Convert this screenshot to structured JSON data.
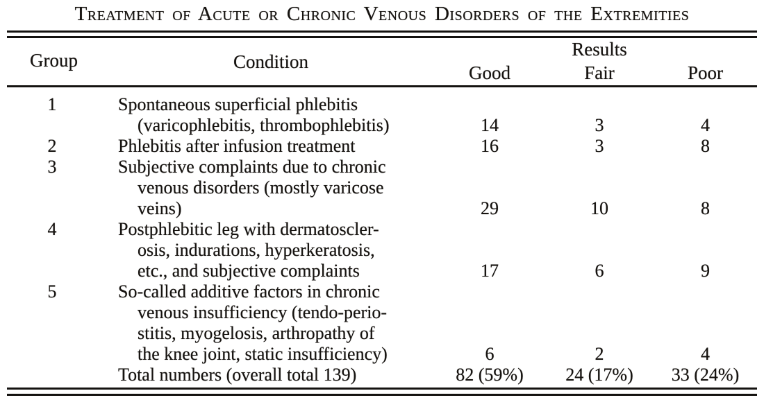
{
  "title": "Treatment of Acute or Chronic Venous Disorders of the Extremities",
  "colors": {
    "ink": "#161310",
    "paper": "#ffffff"
  },
  "table": {
    "headers": {
      "group": "Group",
      "condition": "Condition",
      "results": "Results",
      "good": "Good",
      "fair": "Fair",
      "poor": "Poor"
    },
    "rows": [
      {
        "group": "1",
        "lines": [
          {
            "text": "Spontaneous superficial phlebitis",
            "indent": false,
            "good": "",
            "fair": "",
            "poor": ""
          },
          {
            "text": "(varicophlebitis, thrombophlebitis)",
            "indent": true,
            "good": "14",
            "fair": "3",
            "poor": "4"
          }
        ]
      },
      {
        "group": "2",
        "lines": [
          {
            "text": "Phlebitis after infusion treatment",
            "indent": false,
            "good": "16",
            "fair": "3",
            "poor": "8"
          }
        ]
      },
      {
        "group": "3",
        "lines": [
          {
            "text": "Subjective complaints due to chronic",
            "indent": false,
            "good": "",
            "fair": "",
            "poor": ""
          },
          {
            "text": "venous disorders (mostly varicose",
            "indent": true,
            "good": "",
            "fair": "",
            "poor": ""
          },
          {
            "text": "veins)",
            "indent": true,
            "good": "29",
            "fair": "10",
            "poor": "8"
          }
        ]
      },
      {
        "group": "4",
        "lines": [
          {
            "text": "Postphlebitic leg with dermatoscler-",
            "indent": false,
            "good": "",
            "fair": "",
            "poor": ""
          },
          {
            "text": "osis, indurations, hyperkeratosis,",
            "indent": true,
            "good": "",
            "fair": "",
            "poor": ""
          },
          {
            "text": "etc., and subjective complaints",
            "indent": true,
            "good": "17",
            "fair": "6",
            "poor": "9"
          }
        ]
      },
      {
        "group": "5",
        "lines": [
          {
            "text": "So-called additive factors in chronic",
            "indent": false,
            "good": "",
            "fair": "",
            "poor": ""
          },
          {
            "text": "venous insufficiency (tendo-perio-",
            "indent": true,
            "good": "",
            "fair": "",
            "poor": ""
          },
          {
            "text": "stitis, myogelosis, arthropathy of",
            "indent": true,
            "good": "",
            "fair": "",
            "poor": ""
          },
          {
            "text": "the knee joint, static insufficiency)",
            "indent": true,
            "good": "6",
            "fair": "2",
            "poor": "4"
          }
        ]
      },
      {
        "group": "",
        "lines": [
          {
            "text": "Total numbers (overall total 139)",
            "indent": false,
            "good": "82 (59%)",
            "fair": "24 (17%)",
            "poor": "33 (24%)"
          }
        ]
      }
    ]
  }
}
